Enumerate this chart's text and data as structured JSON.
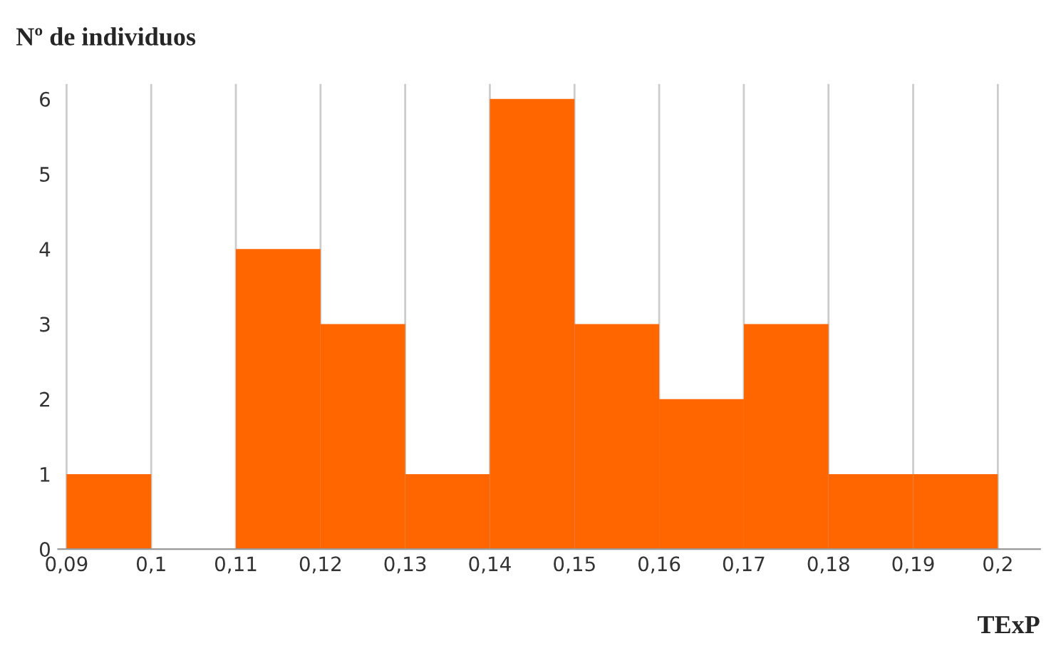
{
  "chart_data": {
    "type": "histogram",
    "ylabel": "Nº de individuos",
    "xlabel": "TExP",
    "bins": [
      0.09,
      0.1,
      0.11,
      0.12,
      0.13,
      0.14,
      0.15,
      0.16,
      0.17,
      0.18,
      0.19,
      0.2
    ],
    "values": [
      1,
      0,
      4,
      3,
      1,
      6,
      3,
      2,
      3,
      1,
      1
    ],
    "color": "#ff6600",
    "xlim": [
      0.089,
      0.205
    ],
    "ylim": [
      0,
      6.2
    ],
    "xticks": [
      {
        "value": 0.09,
        "label": "0,09"
      },
      {
        "value": 0.1,
        "label": "0,1"
      },
      {
        "value": 0.11,
        "label": "0,11"
      },
      {
        "value": 0.12,
        "label": "0,12"
      },
      {
        "value": 0.13,
        "label": "0,13"
      },
      {
        "value": 0.14,
        "label": "0,14"
      },
      {
        "value": 0.15,
        "label": "0,15"
      },
      {
        "value": 0.16,
        "label": "0,16"
      },
      {
        "value": 0.17,
        "label": "0,17"
      },
      {
        "value": 0.18,
        "label": "0,18"
      },
      {
        "value": 0.19,
        "label": "0,19"
      },
      {
        "value": 0.2,
        "label": "0,2"
      }
    ],
    "yticks": [
      0,
      1,
      2,
      3,
      4,
      5,
      6
    ],
    "grid": "x",
    "legend": false
  }
}
